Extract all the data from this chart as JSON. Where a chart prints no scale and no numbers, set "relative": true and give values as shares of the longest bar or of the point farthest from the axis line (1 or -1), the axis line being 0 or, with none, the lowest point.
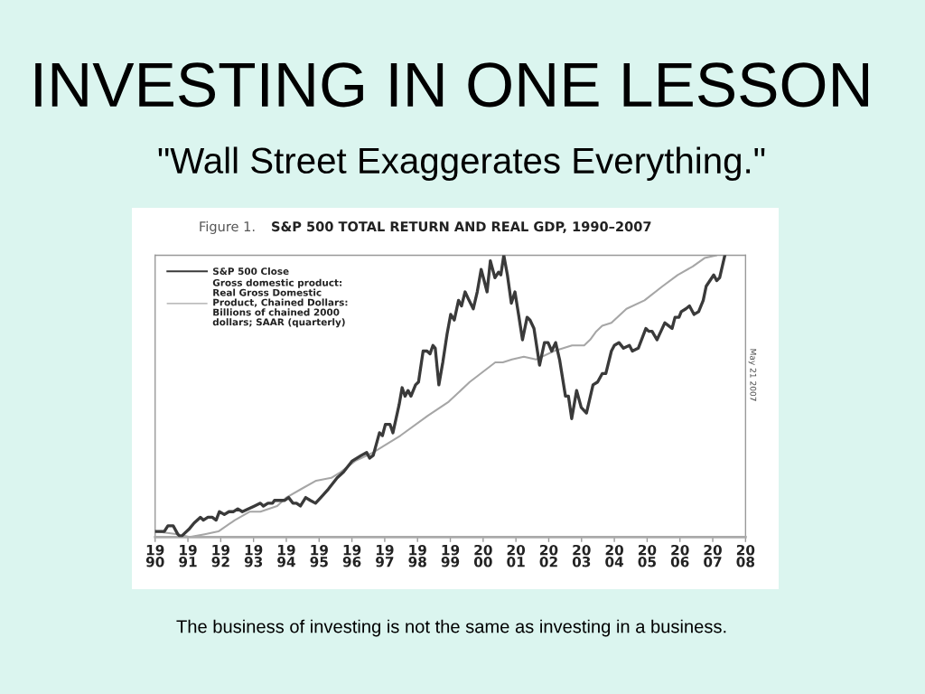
{
  "chart_data": {
    "type": "line",
    "title": "INVESTING IN ONE LESSON",
    "subtitle": "\"Wall Street Exaggerates Everything.\"",
    "annotations": [
      "Figure 1.",
      "S&P 500 TOTAL RETURN AND REAL GDP, 1990–2007",
      "May 21 2007",
      "The business of investing is not the same as investing in a business."
    ],
    "relative": true,
    "legend": "top left",
    "tick_labels": "x",
    "xlim": [
      1990,
      2008
    ],
    "xticks": [
      1990,
      1991,
      1992,
      1993,
      1994,
      1995,
      1996,
      1997,
      1998,
      1999,
      2000,
      2001,
      2002,
      2003,
      2004,
      2005,
      2006,
      2007,
      2008
    ],
    "series": [
      {
        "name": "S&P 500 Close",
        "color": "#3a3a3a",
        "x": [
          1990.0,
          1990.18,
          1990.28,
          1990.39,
          1990.55,
          1990.69,
          1990.78,
          1990.87,
          1991.05,
          1991.19,
          1991.38,
          1991.47,
          1991.61,
          1991.74,
          1991.86,
          1991.96,
          1992.11,
          1992.25,
          1992.39,
          1992.52,
          1992.66,
          1992.85,
          1993.03,
          1993.21,
          1993.3,
          1993.44,
          1993.58,
          1993.64,
          1993.76,
          1993.95,
          1994.07,
          1994.2,
          1994.31,
          1994.43,
          1994.59,
          1994.73,
          1994.89,
          1995.05,
          1995.28,
          1995.55,
          1995.74,
          1996.01,
          1996.29,
          1996.45,
          1996.54,
          1996.65,
          1996.84,
          1996.93,
          1997.02,
          1997.16,
          1997.25,
          1997.44,
          1997.53,
          1997.62,
          1997.71,
          1997.8,
          1997.94,
          1998.03,
          1998.17,
          1998.29,
          1998.38,
          1998.47,
          1998.54,
          1998.65,
          1998.77,
          1998.9,
          1999.01,
          1999.12,
          1999.25,
          1999.34,
          1999.45,
          1999.57,
          1999.7,
          1999.82,
          1999.94,
          2000.03,
          2000.12,
          2000.22,
          2000.36,
          2000.47,
          2000.54,
          2000.63,
          2000.74,
          2000.86,
          2000.97,
          2001.08,
          2001.2,
          2001.34,
          2001.43,
          2001.55,
          2001.72,
          2001.87,
          2001.98,
          2002.09,
          2002.21,
          2002.33,
          2002.51,
          2002.6,
          2002.7,
          2002.85,
          2002.99,
          2003.15,
          2003.35,
          2003.49,
          2003.63,
          2003.74,
          2003.91,
          2004.0,
          2004.14,
          2004.28,
          2004.46,
          2004.55,
          2004.73,
          2004.96,
          2005.05,
          2005.15,
          2005.3,
          2005.42,
          2005.54,
          2005.65,
          2005.76,
          2005.85,
          2005.97,
          2006.04,
          2006.18,
          2006.29,
          2006.43,
          2006.57,
          2006.71,
          2006.8,
          2007.03,
          2007.12,
          2007.21,
          2007.37
        ],
        "values": [
          0.02,
          0.02,
          0.02,
          0.04,
          0.04,
          0.01,
          0.0,
          0.01,
          0.03,
          0.05,
          0.07,
          0.06,
          0.07,
          0.07,
          0.06,
          0.09,
          0.08,
          0.09,
          0.09,
          0.1,
          0.09,
          0.1,
          0.11,
          0.12,
          0.11,
          0.12,
          0.12,
          0.13,
          0.13,
          0.13,
          0.14,
          0.12,
          0.12,
          0.11,
          0.14,
          0.13,
          0.12,
          0.14,
          0.17,
          0.21,
          0.23,
          0.27,
          0.29,
          0.3,
          0.28,
          0.29,
          0.37,
          0.36,
          0.4,
          0.4,
          0.37,
          0.47,
          0.53,
          0.5,
          0.52,
          0.5,
          0.54,
          0.55,
          0.66,
          0.66,
          0.65,
          0.68,
          0.67,
          0.54,
          0.62,
          0.72,
          0.79,
          0.77,
          0.84,
          0.82,
          0.87,
          0.84,
          0.81,
          0.87,
          0.95,
          0.91,
          0.87,
          0.98,
          0.92,
          0.94,
          0.93,
          1.0,
          0.93,
          0.83,
          0.87,
          0.79,
          0.7,
          0.78,
          0.77,
          0.74,
          0.61,
          0.69,
          0.69,
          0.66,
          0.69,
          0.63,
          0.5,
          0.5,
          0.42,
          0.52,
          0.46,
          0.44,
          0.54,
          0.55,
          0.58,
          0.58,
          0.66,
          0.68,
          0.69,
          0.67,
          0.68,
          0.66,
          0.67,
          0.74,
          0.73,
          0.73,
          0.7,
          0.73,
          0.76,
          0.75,
          0.74,
          0.78,
          0.78,
          0.8,
          0.81,
          0.82,
          0.79,
          0.8,
          0.84,
          0.89,
          0.93,
          0.91,
          0.92,
          1.0
        ]
      },
      {
        "name": "Gross domestic product:\nReal Gross Domestic\nProduct, Chained Dollars:\nBillions of chained 2000\ndollars; SAAR (quarterly)",
        "color": "#a6a6a6",
        "x": [
          1990.0,
          1990.69,
          1991.05,
          1991.51,
          1991.93,
          1992.43,
          1992.89,
          1993.21,
          1993.72,
          1994.0,
          1994.45,
          1994.91,
          1995.37,
          1995.65,
          1996.1,
          1996.65,
          1997.48,
          1998.31,
          1998.95,
          1999.59,
          2000.37,
          2000.6,
          2000.88,
          2001.24,
          2001.61,
          2002.16,
          2002.71,
          2003.08,
          2003.26,
          2003.45,
          2003.63,
          2003.91,
          2004.37,
          2004.92,
          2005.47,
          2005.93,
          2006.39,
          2006.75,
          2007.12
        ],
        "values": [
          0.02,
          0.01,
          0.0,
          0.01,
          0.02,
          0.06,
          0.09,
          0.09,
          0.11,
          0.14,
          0.17,
          0.2,
          0.21,
          0.23,
          0.27,
          0.3,
          0.36,
          0.43,
          0.48,
          0.55,
          0.62,
          0.62,
          0.63,
          0.64,
          0.63,
          0.66,
          0.68,
          0.68,
          0.7,
          0.73,
          0.75,
          0.76,
          0.81,
          0.84,
          0.89,
          0.93,
          0.96,
          0.99,
          1.0
        ]
      }
    ]
  }
}
